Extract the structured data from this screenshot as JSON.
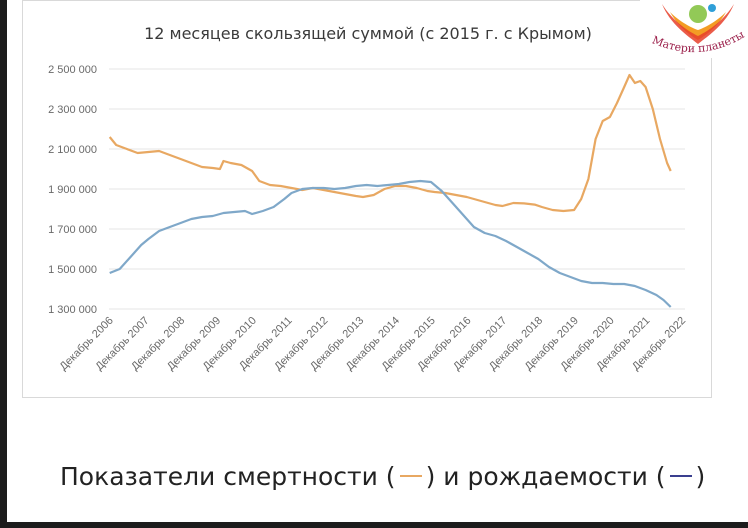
{
  "chart_data": {
    "type": "line",
    "title": "12 месяцев скользящей суммой (с 2015 г. с Крымом)",
    "y_ticks": [
      "2 500 000",
      "2 300 000",
      "2 100 000",
      "1 900 000",
      "1 700 000",
      "1 500 000",
      "1 300 000"
    ],
    "y_tick_values": [
      2500000,
      2300000,
      2100000,
      1900000,
      1700000,
      1500000,
      1300000
    ],
    "ylim": [
      1300000,
      2500000
    ],
    "x_ticks": [
      "Декабрь 2006",
      "Декабрь 2007",
      "Декабрь 2008",
      "Декабрь 2009",
      "Декабрь 2010",
      "Декабрь 2011",
      "Декабрь 2012",
      "Декабрь 2013",
      "Декабрь 2014",
      "Декабрь 2015",
      "Декабрь 2016",
      "Декабрь 2017",
      "Декабрь 2018",
      "Декабрь 2019",
      "Декабрь 2020",
      "Декабрь 2021",
      "Декабрь 2022"
    ],
    "xlim": [
      2006.9,
      2023.0
    ],
    "grid": true,
    "series": [
      {
        "name": "deaths",
        "color": "#e8a862",
        "points": [
          [
            2006.92,
            2160000
          ],
          [
            2007.1,
            2120000
          ],
          [
            2007.4,
            2100000
          ],
          [
            2007.7,
            2080000
          ],
          [
            2008.0,
            2085000
          ],
          [
            2008.3,
            2090000
          ],
          [
            2008.6,
            2070000
          ],
          [
            2008.9,
            2050000
          ],
          [
            2009.2,
            2030000
          ],
          [
            2009.5,
            2010000
          ],
          [
            2009.8,
            2005000
          ],
          [
            2010.0,
            2000000
          ],
          [
            2010.1,
            2040000
          ],
          [
            2010.3,
            2030000
          ],
          [
            2010.6,
            2020000
          ],
          [
            2010.9,
            1990000
          ],
          [
            2011.1,
            1940000
          ],
          [
            2011.4,
            1920000
          ],
          [
            2011.7,
            1915000
          ],
          [
            2012.0,
            1905000
          ],
          [
            2012.3,
            1895000
          ],
          [
            2012.6,
            1905000
          ],
          [
            2012.9,
            1895000
          ],
          [
            2013.2,
            1885000
          ],
          [
            2013.5,
            1875000
          ],
          [
            2013.8,
            1865000
          ],
          [
            2014.0,
            1860000
          ],
          [
            2014.3,
            1870000
          ],
          [
            2014.6,
            1900000
          ],
          [
            2014.9,
            1915000
          ],
          [
            2015.2,
            1915000
          ],
          [
            2015.5,
            1905000
          ],
          [
            2015.8,
            1890000
          ],
          [
            2016.0,
            1885000
          ],
          [
            2016.3,
            1880000
          ],
          [
            2016.6,
            1870000
          ],
          [
            2016.9,
            1860000
          ],
          [
            2017.2,
            1845000
          ],
          [
            2017.5,
            1830000
          ],
          [
            2017.7,
            1820000
          ],
          [
            2017.9,
            1815000
          ],
          [
            2018.2,
            1830000
          ],
          [
            2018.5,
            1828000
          ],
          [
            2018.8,
            1822000
          ],
          [
            2019.0,
            1810000
          ],
          [
            2019.3,
            1795000
          ],
          [
            2019.6,
            1790000
          ],
          [
            2019.9,
            1795000
          ],
          [
            2020.1,
            1850000
          ],
          [
            2020.3,
            1950000
          ],
          [
            2020.5,
            2150000
          ],
          [
            2020.7,
            2240000
          ],
          [
            2020.9,
            2260000
          ],
          [
            2021.1,
            2330000
          ],
          [
            2021.3,
            2410000
          ],
          [
            2021.45,
            2470000
          ],
          [
            2021.6,
            2430000
          ],
          [
            2021.75,
            2440000
          ],
          [
            2021.9,
            2410000
          ],
          [
            2022.1,
            2300000
          ],
          [
            2022.3,
            2150000
          ],
          [
            2022.5,
            2030000
          ],
          [
            2022.6,
            1990000
          ]
        ]
      },
      {
        "name": "births",
        "color": "#7fa8c9",
        "points": [
          [
            2006.92,
            1480000
          ],
          [
            2007.2,
            1500000
          ],
          [
            2007.5,
            1560000
          ],
          [
            2007.8,
            1620000
          ],
          [
            2008.0,
            1650000
          ],
          [
            2008.3,
            1690000
          ],
          [
            2008.6,
            1710000
          ],
          [
            2008.9,
            1730000
          ],
          [
            2009.2,
            1750000
          ],
          [
            2009.5,
            1760000
          ],
          [
            2009.8,
            1765000
          ],
          [
            2010.1,
            1780000
          ],
          [
            2010.4,
            1785000
          ],
          [
            2010.7,
            1790000
          ],
          [
            2010.9,
            1775000
          ],
          [
            2011.2,
            1790000
          ],
          [
            2011.5,
            1810000
          ],
          [
            2011.8,
            1850000
          ],
          [
            2012.0,
            1880000
          ],
          [
            2012.3,
            1900000
          ],
          [
            2012.6,
            1905000
          ],
          [
            2012.9,
            1905000
          ],
          [
            2013.2,
            1900000
          ],
          [
            2013.5,
            1905000
          ],
          [
            2013.8,
            1915000
          ],
          [
            2014.1,
            1920000
          ],
          [
            2014.4,
            1915000
          ],
          [
            2014.7,
            1920000
          ],
          [
            2015.0,
            1925000
          ],
          [
            2015.3,
            1935000
          ],
          [
            2015.6,
            1940000
          ],
          [
            2015.9,
            1935000
          ],
          [
            2016.2,
            1890000
          ],
          [
            2016.5,
            1830000
          ],
          [
            2016.8,
            1770000
          ],
          [
            2017.1,
            1710000
          ],
          [
            2017.4,
            1680000
          ],
          [
            2017.7,
            1665000
          ],
          [
            2018.0,
            1640000
          ],
          [
            2018.3,
            1610000
          ],
          [
            2018.6,
            1580000
          ],
          [
            2018.9,
            1550000
          ],
          [
            2019.2,
            1510000
          ],
          [
            2019.5,
            1480000
          ],
          [
            2019.8,
            1460000
          ],
          [
            2020.1,
            1440000
          ],
          [
            2020.4,
            1430000
          ],
          [
            2020.7,
            1430000
          ],
          [
            2021.0,
            1425000
          ],
          [
            2021.3,
            1425000
          ],
          [
            2021.6,
            1415000
          ],
          [
            2021.9,
            1395000
          ],
          [
            2022.2,
            1370000
          ],
          [
            2022.4,
            1345000
          ],
          [
            2022.6,
            1310000
          ]
        ]
      }
    ]
  },
  "caption": {
    "before": "Показатели смертности (",
    "middle": ") и рождаемости (",
    "after": ")"
  },
  "logo": {
    "text": "Матери планеты",
    "colors": [
      "#e6402a",
      "#f39c24",
      "#7fbf3a",
      "#2f9fd8"
    ]
  },
  "colors": {
    "grid": "#e4e4e4",
    "tick_text": "#6a6a6a",
    "title": "#3a3a3a"
  }
}
